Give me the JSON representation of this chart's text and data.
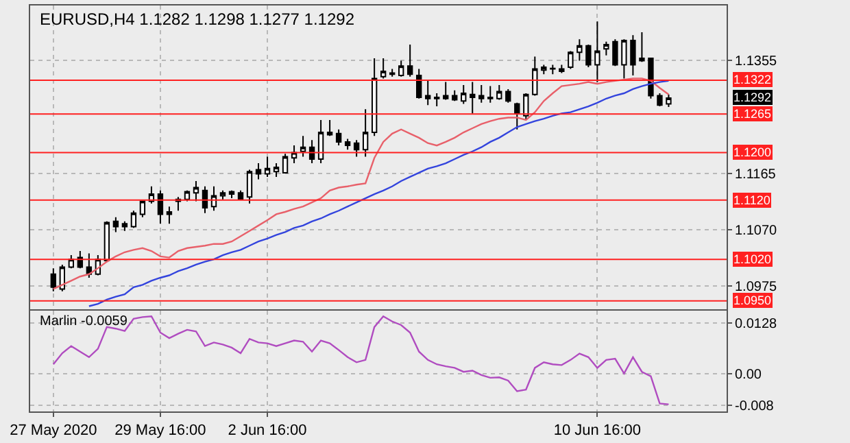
{
  "chart_data": [
    {
      "type": "candlestick",
      "title": "EURUSD,H4 1.1282 1.1298 1.1277 1.1292",
      "categories": [
        "27 May 2020",
        null,
        null,
        null,
        null,
        null,
        null,
        null,
        null,
        null,
        null,
        null,
        "29 May 16:00",
        null,
        null,
        null,
        null,
        null,
        null,
        null,
        null,
        null,
        null,
        null,
        "2 Jun 16:00",
        null,
        null,
        null,
        null,
        null,
        null,
        null,
        null,
        null,
        null,
        null,
        null,
        null,
        null,
        null,
        null,
        null,
        null,
        null,
        null,
        null,
        null,
        null,
        null,
        null,
        null,
        null,
        null,
        null,
        null,
        null,
        null,
        null,
        null,
        null,
        null,
        "10 Jun 16:00",
        null,
        null,
        null,
        null,
        null,
        null,
        null,
        null
      ],
      "ohlc": [
        [
          1.0995,
          1.1005,
          1.0966,
          1.0973
        ],
        [
          1.097,
          1.1011,
          1.0966,
          1.1007
        ],
        [
          1.1007,
          1.1027,
          1.1005,
          1.102
        ],
        [
          1.1023,
          1.1034,
          1.1005,
          1.1007
        ],
        [
          1.1007,
          1.103,
          1.0989,
          1.0995
        ],
        [
          1.0995,
          1.1027,
          1.0993,
          1.102
        ],
        [
          1.1018,
          1.1084,
          1.1018,
          1.1082
        ],
        [
          1.1084,
          1.1091,
          1.1066,
          1.1075
        ],
        [
          1.108,
          1.1084,
          1.1068,
          1.1075
        ],
        [
          1.1075,
          1.1102,
          1.1073,
          1.1098
        ],
        [
          1.1096,
          1.1118,
          1.1091,
          1.1118
        ],
        [
          1.1118,
          1.1143,
          1.1114,
          1.113
        ],
        [
          1.113,
          1.1136,
          1.108,
          1.1096
        ],
        [
          1.11,
          1.1109,
          1.108,
          1.1096
        ],
        [
          1.1118,
          1.1125,
          1.1102,
          1.1121
        ],
        [
          1.1121,
          1.1136,
          1.1118,
          1.1134
        ],
        [
          1.1132,
          1.1152,
          1.1118,
          1.1141
        ],
        [
          1.1136,
          1.1143,
          1.1098,
          1.1107
        ],
        [
          1.1109,
          1.1143,
          1.1102,
          1.1127
        ],
        [
          1.1127,
          1.1136,
          1.1121,
          1.1132
        ],
        [
          1.113,
          1.1136,
          1.1123,
          1.1134
        ],
        [
          1.1132,
          1.1136,
          1.1121,
          1.1121
        ],
        [
          1.1125,
          1.1171,
          1.1114,
          1.1168
        ],
        [
          1.1171,
          1.1182,
          1.1155,
          1.1164
        ],
        [
          1.1164,
          1.1193,
          1.1159,
          1.1173
        ],
        [
          1.1168,
          1.1182,
          1.1159,
          1.1175
        ],
        [
          1.1166,
          1.1198,
          1.1166,
          1.1193
        ],
        [
          1.1191,
          1.1212,
          1.1182,
          1.12
        ],
        [
          1.1202,
          1.1228,
          1.1193,
          1.1209
        ],
        [
          1.1209,
          1.1221,
          1.1182,
          1.1189
        ],
        [
          1.1189,
          1.1255,
          1.1182,
          1.1234
        ],
        [
          1.1234,
          1.1255,
          1.1228,
          1.123
        ],
        [
          1.1232,
          1.1239,
          1.1212,
          1.1218
        ],
        [
          1.1218,
          1.1223,
          1.1205,
          1.1212
        ],
        [
          1.1216,
          1.1221,
          1.1193,
          1.1205
        ],
        [
          1.1205,
          1.1273,
          1.1193,
          1.1234
        ],
        [
          1.1234,
          1.1359,
          1.1228,
          1.1325
        ],
        [
          1.1328,
          1.1359,
          1.1325,
          1.1337
        ],
        [
          1.1332,
          1.1341,
          1.1328,
          1.1334
        ],
        [
          1.133,
          1.1355,
          1.1328,
          1.1346
        ],
        [
          1.1346,
          1.1382,
          1.1328,
          1.1332
        ],
        [
          1.133,
          1.1341,
          1.1291,
          1.1293
        ],
        [
          1.1296,
          1.1323,
          1.128,
          1.1291
        ],
        [
          1.1293,
          1.13,
          1.1278,
          1.1291
        ],
        [
          1.1296,
          1.1319,
          1.1289,
          1.1291
        ],
        [
          1.1296,
          1.1305,
          1.1287,
          1.1289
        ],
        [
          1.1287,
          1.1314,
          1.1282,
          1.13
        ],
        [
          1.1298,
          1.1319,
          1.1266,
          1.1293
        ],
        [
          1.1296,
          1.1314,
          1.1284,
          1.1291
        ],
        [
          1.1293,
          1.1312,
          1.1284,
          1.1291
        ],
        [
          1.1291,
          1.1314,
          1.1289,
          1.1303
        ],
        [
          1.1303,
          1.1307,
          1.1284,
          1.1287
        ],
        [
          1.1282,
          1.1284,
          1.1239,
          1.1266
        ],
        [
          1.1262,
          1.13,
          1.1255,
          1.1298
        ],
        [
          1.1298,
          1.1362,
          1.1296,
          1.1341
        ],
        [
          1.1339,
          1.1348,
          1.1332,
          1.1344
        ],
        [
          1.1341,
          1.1348,
          1.1332,
          1.1342
        ],
        [
          1.1337,
          1.1348,
          1.1334,
          1.1341
        ],
        [
          1.1344,
          1.1371,
          1.1341,
          1.1369
        ],
        [
          1.1369,
          1.1391,
          1.1355,
          1.138
        ],
        [
          1.138,
          1.1382,
          1.1344,
          1.1348
        ],
        [
          1.1348,
          1.1421,
          1.1319,
          1.1371
        ],
        [
          1.1375,
          1.1387,
          1.1364,
          1.1382
        ],
        [
          1.1387,
          1.1391,
          1.1346,
          1.1348
        ],
        [
          1.1348,
          1.1391,
          1.1325,
          1.1389
        ],
        [
          1.1389,
          1.1398,
          1.133,
          1.1348
        ],
        [
          1.1355,
          1.1403,
          1.1353,
          1.1359
        ],
        [
          1.1359,
          1.1359,
          1.1291,
          1.1296
        ],
        [
          1.1296,
          1.13,
          1.1278,
          1.128
        ],
        [
          1.1282,
          1.1298,
          1.1277,
          1.1292
        ]
      ],
      "series": [
        {
          "type": "line",
          "color": "#e8606a",
          "values": [
            1.097,
            1.0977,
            1.0984,
            1.0991,
            1.0995,
            1.1005,
            1.1016,
            1.1025,
            1.1032,
            1.1036,
            1.1039,
            1.1034,
            1.1025,
            1.1023,
            1.1034,
            1.1039,
            1.1041,
            1.1043,
            1.1046,
            1.1046,
            1.105,
            1.1059,
            1.1068,
            1.1077,
            1.1086,
            1.1096,
            1.11,
            1.1105,
            1.1109,
            1.1116,
            1.1123,
            1.1136,
            1.1141,
            1.1143,
            1.1146,
            1.1148,
            1.1191,
            1.1218,
            1.1232,
            1.1239,
            1.1232,
            1.1225,
            1.1216,
            1.1212,
            1.1218,
            1.1225,
            1.1234,
            1.1241,
            1.1248,
            1.1253,
            1.1257,
            1.1259,
            1.1259,
            1.1255,
            1.1268,
            1.1287,
            1.13,
            1.1312,
            1.1314,
            1.1316,
            1.1319,
            1.1316,
            1.1319,
            1.1321,
            1.1323,
            1.1325,
            1.1325,
            1.1321,
            1.1309,
            1.1298
          ]
        },
        {
          "type": "line",
          "color": "#3344dd",
          "values": [
            null,
            null,
            null,
            null,
            1.0941,
            1.0945,
            1.0952,
            1.0957,
            1.0961,
            1.0973,
            1.0977,
            1.0984,
            1.0989,
            1.0993,
            1.1,
            1.1005,
            1.1011,
            1.1016,
            1.102,
            1.1027,
            1.1032,
            1.1036,
            1.1043,
            1.105,
            1.1055,
            1.1061,
            1.1066,
            1.1073,
            1.1077,
            1.1084,
            1.1089,
            1.1096,
            1.1102,
            1.1109,
            1.1116,
            1.1123,
            1.113,
            1.1136,
            1.1143,
            1.1152,
            1.1159,
            1.1166,
            1.1173,
            1.1177,
            1.1182,
            1.1189,
            1.1196,
            1.1202,
            1.1209,
            1.1218,
            1.1225,
            1.1234,
            1.1243,
            1.1248,
            1.1253,
            1.1257,
            1.1262,
            1.1266,
            1.1268,
            1.1273,
            1.1278,
            1.1284,
            1.1291,
            1.1296,
            1.13,
            1.1307,
            1.1312,
            1.1316,
            1.1319,
            1.1321
          ]
        }
      ],
      "ylim": [
        1.0936,
        1.1448
      ],
      "yticks": [
        1.0975,
        {
          "value": 1.107,
          "label": "1.1070"
        },
        1.1165,
        1.1355
      ],
      "ref_lines": [
        {
          "axis": "y",
          "value": 1.1322,
          "label": "1.1322",
          "color": "#ff2020"
        },
        {
          "axis": "y",
          "value": 1.1265,
          "label": "1.1265",
          "color": "#ff2020"
        },
        {
          "axis": "y",
          "value": 1.12,
          "label": "1.1200",
          "color": "#ff2020"
        },
        {
          "axis": "y",
          "value": 1.112,
          "label": "1.1120",
          "color": "#ff2020"
        },
        {
          "axis": "y",
          "value": 1.102,
          "label": "1.1020",
          "color": "#ff2020"
        },
        {
          "axis": "y",
          "value": 1.095,
          "label": "1.0950",
          "color": "#ff2020"
        }
      ],
      "annotations": [
        "1.1292"
      ],
      "grid": true,
      "tick_labels": "y"
    },
    {
      "type": "line",
      "title": "Marlin -0.0059",
      "categories": [
        "27 May 2020",
        null,
        null,
        null,
        null,
        null,
        null,
        null,
        null,
        null,
        null,
        null,
        "29 May 16:00",
        null,
        null,
        null,
        null,
        null,
        null,
        null,
        null,
        null,
        null,
        null,
        "2 Jun 16:00",
        null,
        null,
        null,
        null,
        null,
        null,
        null,
        null,
        null,
        null,
        null,
        null,
        null,
        null,
        null,
        null,
        null,
        null,
        null,
        null,
        null,
        null,
        null,
        null,
        null,
        null,
        null,
        null,
        null,
        null,
        null,
        null,
        null,
        null,
        null,
        null,
        "10 Jun 16:00",
        null,
        null,
        null,
        null,
        null,
        null,
        null,
        null
      ],
      "series": [
        {
          "color": "#b04cc0",
          "values": [
            0.0023,
            0.0051,
            0.0069,
            0.0055,
            0.0041,
            0.0062,
            0.0117,
            0.0113,
            0.0107,
            0.0138,
            0.0142,
            0.0144,
            0.0103,
            0.0089,
            0.01,
            0.011,
            0.0106,
            0.0069,
            0.0078,
            0.0073,
            0.0065,
            0.0051,
            0.0087,
            0.0078,
            0.0076,
            0.0069,
            0.0076,
            0.0083,
            0.008,
            0.0055,
            0.0083,
            0.0076,
            0.0059,
            0.0041,
            0.0028,
            0.0034,
            0.0117,
            0.0144,
            0.0131,
            0.0122,
            0.0103,
            0.0055,
            0.0034,
            0.0023,
            0.0018,
            0.0014,
            0.0004,
            0.0007,
            -0.0004,
            -0.0011,
            -0.001,
            -0.0018,
            -0.0045,
            -0.0041,
            0.0014,
            0.0028,
            0.0023,
            0.0021,
            0.0034,
            0.005,
            0.0041,
            0.0014,
            0.0034,
            0.0037,
            0.0,
            0.0041,
            0.0004,
            -0.0007,
            -0.0076,
            -0.0078
          ]
        }
      ],
      "ylim": [
        -0.0096,
        0.0158
      ],
      "yticks": [
        0.0128,
        {
          "value": 0,
          "label": "0.00"
        },
        -0.008
      ],
      "grid": true
    }
  ]
}
